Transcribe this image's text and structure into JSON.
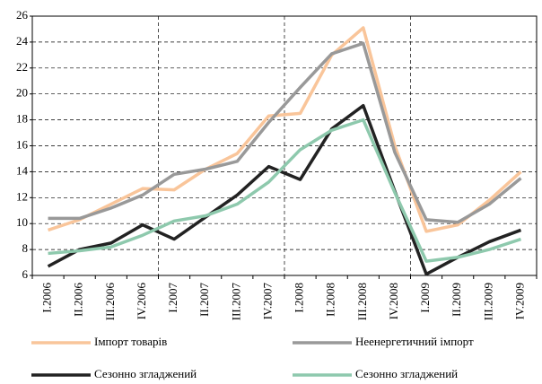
{
  "chart_data": {
    "type": "line",
    "categories": [
      "I.2006",
      "II.2006",
      "III.2006",
      "IV.2006",
      "I.2007",
      "II.2007",
      "III.2007",
      "IV.2007",
      "I.2008",
      "II.2008",
      "III.2008",
      "IV.2008",
      "I.2009",
      "II.2009",
      "III.2009",
      "IV.2009"
    ],
    "series": [
      {
        "name": "Імпорт товарів",
        "color": "#f9c59a",
        "values": [
          9.5,
          10.3,
          11.5,
          12.7,
          12.6,
          14.2,
          15.4,
          18.3,
          18.5,
          23.0,
          25.1,
          16.0,
          9.4,
          9.9,
          11.8,
          14.0
        ]
      },
      {
        "name": "Неенергетичний імпорт",
        "color": "#999999",
        "values": [
          10.4,
          10.4,
          11.2,
          12.2,
          13.8,
          14.2,
          14.8,
          17.8,
          20.5,
          23.1,
          23.9,
          15.5,
          10.3,
          10.1,
          11.5,
          13.5
        ]
      },
      {
        "name": "Сезонно згладжений",
        "color": "#222222",
        "values": [
          6.7,
          8.0,
          8.5,
          9.9,
          8.8,
          10.5,
          12.2,
          14.4,
          13.4,
          17.3,
          19.1,
          12.5,
          6.1,
          7.4,
          8.6,
          9.5
        ]
      },
      {
        "name": "Сезонно згладжений",
        "color": "#8ec9ad",
        "values": [
          7.7,
          7.9,
          8.2,
          9.1,
          10.2,
          10.6,
          11.5,
          13.2,
          15.7,
          17.2,
          18.0,
          12.4,
          7.1,
          7.4,
          8.0,
          8.8
        ]
      }
    ],
    "ylim": [
      6,
      26
    ],
    "yticks": [
      6,
      8,
      10,
      12,
      14,
      16,
      18,
      20,
      22,
      24,
      26
    ],
    "grid": true,
    "legend": "bottom"
  }
}
